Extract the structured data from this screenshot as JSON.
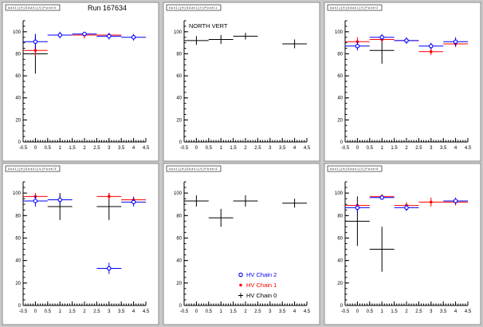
{
  "run_label": "Run 167634",
  "colors": {
    "HV Chain 2": "#0000ff",
    "HV Chain 1": "#ff0000",
    "HV Chain 0": "#000000"
  },
  "legend": {
    "items": [
      {
        "label": "HV Chain 2",
        "color": "#0000ff",
        "marker": "circle"
      },
      {
        "label": "HV Chain 1",
        "color": "#ff0000",
        "marker": "star"
      },
      {
        "label": "HV Chain 0",
        "color": "#000000",
        "marker": "cross"
      }
    ]
  },
  "chart_data": [
    {
      "type": "scatter",
      "title": "d a n 1 ) ( H ) G d a n 1 ( V ) P a n e l 0",
      "xlim": [
        -0.5,
        4.5
      ],
      "ylim": [
        0,
        110
      ],
      "xticks": [
        "-0.5",
        "0",
        "0.5",
        "1",
        "1.5",
        "2",
        "2.5",
        "3",
        "3.5",
        "4",
        "4.5"
      ],
      "yticks": [
        "0",
        "20",
        "40",
        "60",
        "80",
        "100"
      ],
      "annotation": "",
      "series": [
        {
          "name": "HV Chain 0",
          "points": [
            {
              "x": 0,
              "y": 80,
              "ex": 0.5,
              "ey": 18
            }
          ]
        },
        {
          "name": "HV Chain 1",
          "points": [
            {
              "x": 0,
              "y": 83,
              "ex": 0.5,
              "ey": 5
            },
            {
              "x": 1,
              "y": 97,
              "ex": 0.5,
              "ey": 2
            },
            {
              "x": 2,
              "y": 97,
              "ex": 0.5,
              "ey": 3
            },
            {
              "x": 3,
              "y": 97,
              "ex": 0.5,
              "ey": 2
            }
          ]
        },
        {
          "name": "HV Chain 2",
          "points": [
            {
              "x": 0,
              "y": 91,
              "ex": 0.5,
              "ey": 7
            },
            {
              "x": 1,
              "y": 97,
              "ex": 0.5,
              "ey": 3
            },
            {
              "x": 2,
              "y": 98,
              "ex": 0.5,
              "ey": 2
            },
            {
              "x": 3,
              "y": 96,
              "ex": 0.5,
              "ey": 3
            },
            {
              "x": 4,
              "y": 95,
              "ex": 0.5,
              "ey": 3
            }
          ]
        }
      ]
    },
    {
      "type": "scatter",
      "title": "d a n 1 ) ( H ) G d a n 1 ( V ) P a n e l 1",
      "xlim": [
        -0.5,
        4.5
      ],
      "ylim": [
        0,
        110
      ],
      "xticks": [
        "-0.5",
        "0",
        "0.5",
        "1",
        "1.5",
        "2",
        "2.5",
        "3",
        "3.5",
        "4",
        "4.5"
      ],
      "yticks": [
        "0",
        "20",
        "40",
        "60",
        "80",
        "100"
      ],
      "annotation": "NORTH VERT",
      "series": [
        {
          "name": "HV Chain 0",
          "points": [
            {
              "x": 0,
              "y": 92,
              "ex": 0.5,
              "ey": 4
            },
            {
              "x": 1,
              "y": 93,
              "ex": 0.5,
              "ey": 4
            },
            {
              "x": 2,
              "y": 96,
              "ex": 0.5,
              "ey": 3
            },
            {
              "x": 4,
              "y": 89,
              "ex": 0.5,
              "ey": 4
            }
          ]
        }
      ]
    },
    {
      "type": "scatter",
      "title": "d a n 1 ) ( H ) G d a n 1 ( V ) P a n e l 2",
      "xlim": [
        -0.5,
        4.5
      ],
      "ylim": [
        0,
        110
      ],
      "xticks": [
        "-0.5",
        "0",
        "0.5",
        "1",
        "1.5",
        "2",
        "2.5",
        "3",
        "3.5",
        "4",
        "4.5"
      ],
      "yticks": [
        "0",
        "20",
        "40",
        "60",
        "80",
        "100"
      ],
      "annotation": "",
      "series": [
        {
          "name": "HV Chain 0",
          "points": [
            {
              "x": 1,
              "y": 83,
              "ex": 0.5,
              "ey": 12
            }
          ]
        },
        {
          "name": "HV Chain 1",
          "points": [
            {
              "x": 0,
              "y": 91,
              "ex": 0.5,
              "ey": 4
            },
            {
              "x": 1,
              "y": 93,
              "ex": 0.5,
              "ey": 3
            },
            {
              "x": 2,
              "y": 92,
              "ex": 0.5,
              "ey": 3
            },
            {
              "x": 3,
              "y": 82,
              "ex": 0.5,
              "ey": 3
            },
            {
              "x": 4,
              "y": 89,
              "ex": 0.5,
              "ey": 3
            }
          ]
        },
        {
          "name": "HV Chain 2",
          "points": [
            {
              "x": 0,
              "y": 87,
              "ex": 0.5,
              "ey": 4
            },
            {
              "x": 1,
              "y": 95,
              "ex": 0.5,
              "ey": 3
            },
            {
              "x": 2,
              "y": 92,
              "ex": 0.5,
              "ey": 3
            },
            {
              "x": 3,
              "y": 87,
              "ex": 0.5,
              "ey": 3
            },
            {
              "x": 4,
              "y": 91,
              "ex": 0.5,
              "ey": 4
            }
          ]
        }
      ]
    },
    {
      "type": "scatter",
      "title": "d a n 1 ) ( H ) G d a n 1 ( V ) P a n e l 3",
      "xlim": [
        -0.5,
        4.5
      ],
      "ylim": [
        0,
        110
      ],
      "xticks": [
        "-0.5",
        "0",
        "0.5",
        "1",
        "1.5",
        "2",
        "2.5",
        "3",
        "3.5",
        "4",
        "4.5"
      ],
      "yticks": [
        "0",
        "20",
        "40",
        "60",
        "80",
        "100"
      ],
      "annotation": "",
      "series": [
        {
          "name": "HV Chain 0",
          "points": [
            {
              "x": 1,
              "y": 88,
              "ex": 0.5,
              "ey": 12
            },
            {
              "x": 3,
              "y": 88,
              "ex": 0.5,
              "ey": 12
            }
          ]
        },
        {
          "name": "HV Chain 1",
          "points": [
            {
              "x": 0,
              "y": 97,
              "ex": 0.5,
              "ey": 3
            },
            {
              "x": 3,
              "y": 97,
              "ex": 0.5,
              "ey": 3
            },
            {
              "x": 4,
              "y": 94,
              "ex": 0.5,
              "ey": 3
            }
          ]
        },
        {
          "name": "HV Chain 2",
          "points": [
            {
              "x": 0,
              "y": 93,
              "ex": 0.5,
              "ey": 5
            },
            {
              "x": 1,
              "y": 94,
              "ex": 0.5,
              "ey": 4
            },
            {
              "x": 3,
              "y": 33,
              "ex": 0.5,
              "ey": 5
            },
            {
              "x": 4,
              "y": 92,
              "ex": 0.5,
              "ey": 4
            }
          ]
        }
      ]
    },
    {
      "type": "scatter",
      "title": "d a n 1 ) ( H ) G d a n 1 ( V ) P a n e l 4",
      "xlim": [
        -0.5,
        4.5
      ],
      "ylim": [
        0,
        110
      ],
      "xticks": [
        "-0.5",
        "0",
        "0.5",
        "1",
        "1.5",
        "2",
        "2.5",
        "3",
        "3.5",
        "4",
        "4.5"
      ],
      "yticks": [
        "0",
        "20",
        "40",
        "60",
        "80",
        "100"
      ],
      "annotation": "",
      "series": [
        {
          "name": "HV Chain 0",
          "points": [
            {
              "x": 0,
              "y": 93,
              "ex": 0.5,
              "ey": 5
            },
            {
              "x": 1,
              "y": 78,
              "ex": 0.5,
              "ey": 8
            },
            {
              "x": 2,
              "y": 93,
              "ex": 0.5,
              "ey": 5
            },
            {
              "x": 4,
              "y": 91,
              "ex": 0.5,
              "ey": 4
            }
          ]
        }
      ]
    },
    {
      "type": "scatter",
      "title": "d a n 1 ) ( H ) G d a n 1 ( V ) P a n e l 5",
      "xlim": [
        -0.5,
        4.5
      ],
      "ylim": [
        0,
        110
      ],
      "xticks": [
        "-0.5",
        "0",
        "0.5",
        "1",
        "1.5",
        "2",
        "2.5",
        "3",
        "3.5",
        "4",
        "4.5"
      ],
      "yticks": [
        "0",
        "20",
        "40",
        "60",
        "80",
        "100"
      ],
      "annotation": "",
      "series": [
        {
          "name": "HV Chain 0",
          "points": [
            {
              "x": 0,
              "y": 75,
              "ex": 0.5,
              "ey": 22
            },
            {
              "x": 1,
              "y": 50,
              "ex": 0.5,
              "ey": 20
            }
          ]
        },
        {
          "name": "HV Chain 1",
          "points": [
            {
              "x": 0,
              "y": 89,
              "ex": 0.5,
              "ey": 3
            },
            {
              "x": 1,
              "y": 97,
              "ex": 0.5,
              "ey": 2
            },
            {
              "x": 2,
              "y": 89,
              "ex": 0.5,
              "ey": 3
            },
            {
              "x": 3,
              "y": 92,
              "ex": 0.5,
              "ey": 4
            },
            {
              "x": 4,
              "y": 92,
              "ex": 0.5,
              "ey": 3
            }
          ]
        },
        {
          "name": "HV Chain 2",
          "points": [
            {
              "x": 0,
              "y": 87,
              "ex": 0.5,
              "ey": 4
            },
            {
              "x": 1,
              "y": 96,
              "ex": 0.5,
              "ey": 2
            },
            {
              "x": 2,
              "y": 87,
              "ex": 0.5,
              "ey": 3
            },
            {
              "x": 4,
              "y": 93,
              "ex": 0.5,
              "ey": 3
            }
          ]
        }
      ]
    }
  ]
}
